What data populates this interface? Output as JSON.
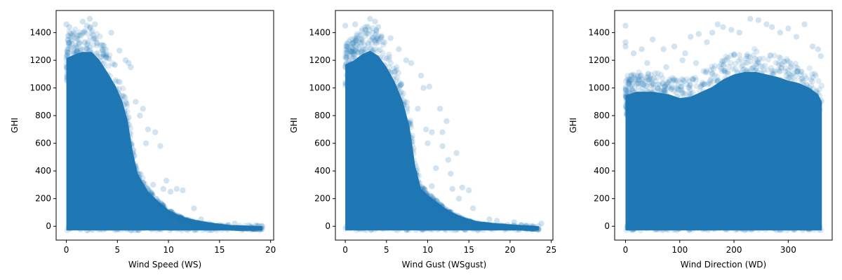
{
  "chart_data": [
    {
      "type": "scatter",
      "xlabel": "Wind Speed (WS)",
      "ylabel": "GHI",
      "xlim": [
        -1,
        20.3
      ],
      "ylim": [
        -100,
        1560
      ],
      "xticks": [
        0,
        5,
        10,
        15,
        20
      ],
      "yticks": [
        0,
        200,
        400,
        600,
        800,
        1000,
        1200,
        1400
      ],
      "marker_color": "#1f77b4",
      "marker_alpha": 0.15,
      "envelope": [
        [
          0,
          1350
        ],
        [
          0.8,
          1380
        ],
        [
          1.5,
          1400
        ],
        [
          2.5,
          1400
        ],
        [
          3.2,
          1340
        ],
        [
          4,
          1240
        ],
        [
          4.8,
          1130
        ],
        [
          5.5,
          1000
        ],
        [
          6,
          850
        ],
        [
          6.5,
          600
        ],
        [
          7,
          420
        ],
        [
          8,
          280
        ],
        [
          9,
          200
        ],
        [
          10,
          130
        ],
        [
          11,
          90
        ],
        [
          12,
          60
        ],
        [
          14,
          30
        ],
        [
          16,
          10
        ],
        [
          19.2,
          0
        ]
      ],
      "outliers": [
        [
          0,
          1460
        ],
        [
          0.3,
          1440
        ],
        [
          1.6,
          1480
        ],
        [
          2,
          1450
        ],
        [
          2.3,
          1500
        ],
        [
          2.8,
          1460
        ],
        [
          4.4,
          1400
        ],
        [
          5.2,
          1270
        ],
        [
          5.8,
          1200
        ],
        [
          6.1,
          1180
        ],
        [
          6.3,
          1150
        ],
        [
          6.8,
          900
        ],
        [
          7.5,
          850
        ],
        [
          7.2,
          800
        ],
        [
          8,
          700
        ],
        [
          8.7,
          680
        ],
        [
          9.2,
          580
        ],
        [
          7.8,
          600
        ],
        [
          9.8,
          330
        ],
        [
          8.5,
          300
        ],
        [
          9.5,
          270
        ],
        [
          10.8,
          270
        ],
        [
          11.4,
          260
        ],
        [
          10.2,
          250
        ],
        [
          12.5,
          130
        ],
        [
          13.2,
          50
        ],
        [
          14,
          20
        ],
        [
          15,
          10
        ],
        [
          15.3,
          5
        ],
        [
          16.5,
          20
        ],
        [
          19.2,
          0
        ]
      ]
    },
    {
      "type": "scatter",
      "xlabel": "Wind Gust (WSgust)",
      "ylabel": "GHI",
      "xlim": [
        -1.2,
        25.2
      ],
      "ylim": [
        -100,
        1560
      ],
      "xticks": [
        0,
        5,
        10,
        15,
        20,
        25
      ],
      "yticks": [
        0,
        200,
        400,
        600,
        800,
        1000,
        1200,
        1400
      ],
      "marker_color": "#1f77b4",
      "marker_alpha": 0.15,
      "envelope": [
        [
          0,
          1300
        ],
        [
          1,
          1330
        ],
        [
          2,
          1380
        ],
        [
          3,
          1410
        ],
        [
          4,
          1370
        ],
        [
          5,
          1280
        ],
        [
          6,
          1160
        ],
        [
          7,
          1000
        ],
        [
          7.8,
          800
        ],
        [
          8.5,
          480
        ],
        [
          9.2,
          300
        ],
        [
          10,
          250
        ],
        [
          11,
          200
        ],
        [
          12,
          150
        ],
        [
          13,
          110
        ],
        [
          14,
          80
        ],
        [
          15,
          60
        ],
        [
          16,
          40
        ],
        [
          18,
          25
        ],
        [
          20,
          15
        ],
        [
          23.5,
          0
        ]
      ],
      "outliers": [
        [
          0,
          1450
        ],
        [
          1.2,
          1460
        ],
        [
          3,
          1500
        ],
        [
          3.6,
          1480
        ],
        [
          4,
          1440
        ],
        [
          5.5,
          1360
        ],
        [
          6.5,
          1280
        ],
        [
          7.4,
          1200
        ],
        [
          8,
          1180
        ],
        [
          9.2,
          1090
        ],
        [
          9.5,
          1000
        ],
        [
          10.2,
          1010
        ],
        [
          8.8,
          850
        ],
        [
          11.5,
          850
        ],
        [
          12.3,
          760
        ],
        [
          9.8,
          700
        ],
        [
          10.5,
          680
        ],
        [
          11.8,
          680
        ],
        [
          10,
          600
        ],
        [
          11.8,
          580
        ],
        [
          13.5,
          530
        ],
        [
          12.5,
          480
        ],
        [
          11,
          420
        ],
        [
          12.8,
          380
        ],
        [
          10.5,
          290
        ],
        [
          13,
          270
        ],
        [
          14.2,
          280
        ],
        [
          15,
          260
        ],
        [
          13.8,
          200
        ],
        [
          15.5,
          130
        ],
        [
          17.5,
          50
        ],
        [
          18.4,
          40
        ],
        [
          19.7,
          10
        ],
        [
          20.5,
          30
        ],
        [
          22.8,
          0
        ],
        [
          23.8,
          20
        ]
      ]
    },
    {
      "type": "scatter",
      "xlabel": "Wind Direction (WD)",
      "ylabel": "GHI",
      "xlim": [
        -20,
        381
      ],
      "ylim": [
        -100,
        1560
      ],
      "xticks": [
        0,
        100,
        200,
        300
      ],
      "yticks": [
        0,
        200,
        400,
        600,
        800,
        1000,
        1200,
        1400
      ],
      "marker_color": "#1f77b4",
      "marker_alpha": 0.15,
      "envelope": [
        [
          0,
          1050
        ],
        [
          20,
          1080
        ],
        [
          50,
          1080
        ],
        [
          80,
          1060
        ],
        [
          100,
          1030
        ],
        [
          120,
          1040
        ],
        [
          140,
          1080
        ],
        [
          160,
          1120
        ],
        [
          180,
          1180
        ],
        [
          200,
          1220
        ],
        [
          220,
          1240
        ],
        [
          240,
          1240
        ],
        [
          260,
          1220
        ],
        [
          280,
          1200
        ],
        [
          300,
          1170
        ],
        [
          320,
          1150
        ],
        [
          340,
          1110
        ],
        [
          355,
          1060
        ],
        [
          362,
          1000
        ]
      ],
      "outliers": [
        [
          0,
          1450
        ],
        [
          0,
          1330
        ],
        [
          0,
          1300
        ],
        [
          15,
          1250
        ],
        [
          30,
          1280
        ],
        [
          50,
          1350
        ],
        [
          70,
          1280
        ],
        [
          90,
          1300
        ],
        [
          110,
          1250
        ],
        [
          120,
          1370
        ],
        [
          135,
          1390
        ],
        [
          150,
          1330
        ],
        [
          160,
          1400
        ],
        [
          170,
          1460
        ],
        [
          180,
          1440
        ],
        [
          195,
          1420
        ],
        [
          210,
          1400
        ],
        [
          230,
          1500
        ],
        [
          245,
          1490
        ],
        [
          260,
          1460
        ],
        [
          270,
          1440
        ],
        [
          285,
          1400
        ],
        [
          300,
          1430
        ],
        [
          315,
          1370
        ],
        [
          330,
          1460
        ],
        [
          345,
          1300
        ],
        [
          355,
          1280
        ],
        [
          360,
          1230
        ],
        [
          40,
          1180
        ],
        [
          75,
          1150
        ],
        [
          105,
          1200
        ],
        [
          130,
          1180
        ]
      ]
    }
  ]
}
